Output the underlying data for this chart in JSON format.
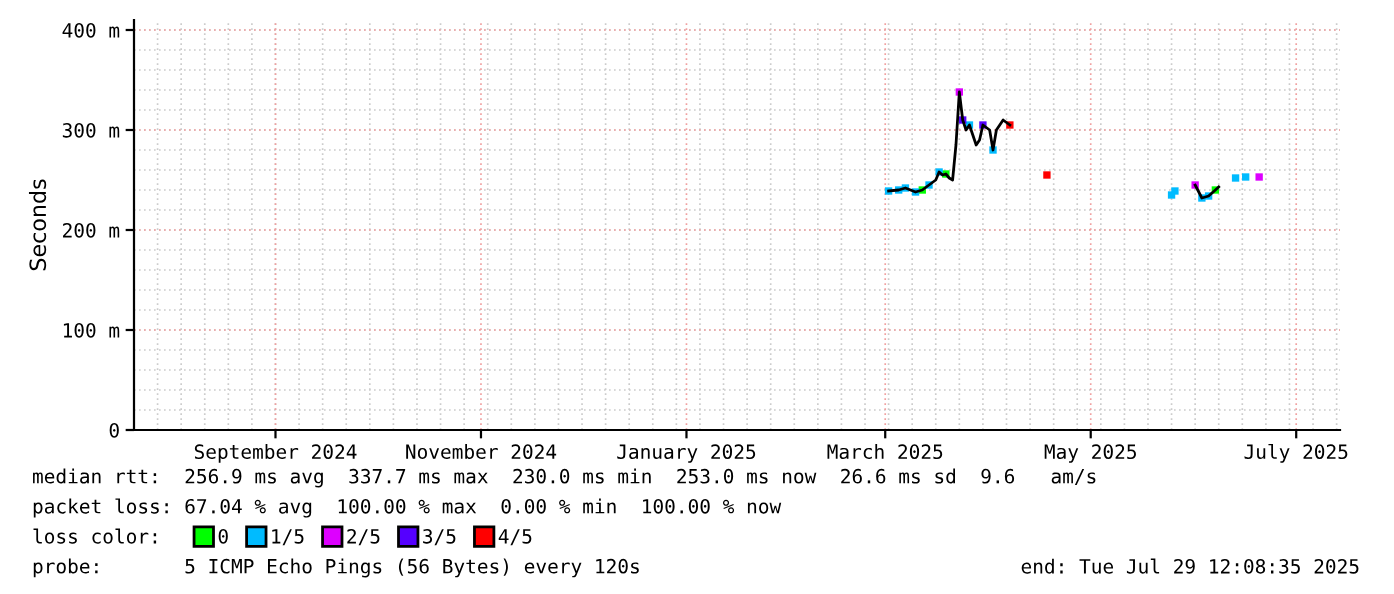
{
  "chart_data": {
    "type": "line",
    "ylabel": "Seconds",
    "xlim": [
      "2024-08-05",
      "2025-07-29"
    ],
    "xticks": [
      {
        "value": "2024-09-16",
        "label": "September 2024"
      },
      {
        "value": "2024-11-16",
        "label": "November 2024"
      },
      {
        "value": "2025-01-16",
        "label": "January 2025"
      },
      {
        "value": "2025-03-16",
        "label": "March 2025"
      },
      {
        "value": "2025-05-16",
        "label": "May 2025"
      },
      {
        "value": "2025-07-16",
        "label": "July 2025"
      }
    ],
    "ylim": [
      0,
      410
    ],
    "yticks": [
      {
        "value": 0,
        "label": "0"
      },
      {
        "value": 100,
        "label": "100 m"
      },
      {
        "value": 200,
        "label": "200 m"
      },
      {
        "value": 300,
        "label": "300 m"
      },
      {
        "value": 400,
        "label": "400 m"
      }
    ],
    "grid": true,
    "legend": "bottom",
    "legend_title": "loss color:",
    "series": [
      {
        "color": "#000000",
        "x": [
          "2025-03-17",
          "2025-03-20",
          "2025-03-22",
          "2025-03-25",
          "2025-03-27",
          "2025-03-29",
          "2025-03-31",
          "2025-04-01",
          "2025-04-02",
          "2025-04-03",
          "2025-04-04",
          "2025-04-05",
          "2025-04-06",
          "2025-04-07",
          "2025-04-08",
          "2025-04-09",
          "2025-04-10",
          "2025-04-11",
          "2025-04-12",
          "2025-04-13",
          "2025-04-14",
          "2025-04-16",
          "2025-04-17",
          "2025-04-18",
          "2025-04-19",
          "2025-04-20",
          "2025-04-22",
          "2025-04-27",
          "2025-06-16",
          "2025-06-18",
          "2025-06-20",
          "2025-06-22",
          "2025-06-23"
        ],
        "values": [
          239,
          240,
          242,
          238,
          240,
          245,
          250,
          258,
          255,
          256,
          252,
          250,
          285,
          338,
          310,
          300,
          305,
          295,
          285,
          290,
          305,
          300,
          280,
          300,
          305,
          310,
          305,
          null,
          245,
          232,
          234,
          240,
          243
        ]
      },
      {
        "type": "scatter",
        "name": "0",
        "color": "#00ff00",
        "x": [
          "2025-03-27",
          "2025-04-03",
          "2025-06-22"
        ],
        "values": [
          240,
          256,
          240
        ]
      },
      {
        "type": "scatter",
        "name": "1/5",
        "color": "#00bbff",
        "x": [
          "2025-03-17",
          "2025-03-20",
          "2025-03-22",
          "2025-03-25",
          "2025-03-29",
          "2025-04-01",
          "2025-04-10",
          "2025-04-17",
          "2025-06-09",
          "2025-06-10",
          "2025-06-18",
          "2025-06-20",
          "2025-06-28",
          "2025-07-01"
        ],
        "values": [
          239,
          240,
          242,
          238,
          245,
          258,
          305,
          280,
          235,
          239,
          232,
          234,
          252,
          253
        ]
      },
      {
        "type": "scatter",
        "name": "2/5",
        "color": "#dd00ff",
        "x": [
          "2025-04-07",
          "2025-06-16",
          "2025-07-05"
        ],
        "values": [
          338,
          245,
          253
        ]
      },
      {
        "type": "scatter",
        "name": "3/5",
        "color": "#5500ff",
        "x": [
          "2025-04-08",
          "2025-04-14"
        ],
        "values": [
          310,
          305
        ]
      },
      {
        "type": "scatter",
        "name": "4/5",
        "color": "#ff0000",
        "x": [
          "2025-04-22",
          "2025-05-03"
        ],
        "values": [
          305,
          255
        ]
      }
    ],
    "annotations": [
      "median rtt:  256.9 ms avg  337.7 ms max  230.0 ms min  253.0 ms now  26.6 ms sd  9.6   am/s",
      "packet loss: 67.04 % avg  100.00 % max  0.00 % min  100.00 % now",
      "probe:       5 ICMP Echo Pings (56 Bytes) every 120s",
      "end: Tue Jul 29 12:08:35 2025"
    ]
  }
}
